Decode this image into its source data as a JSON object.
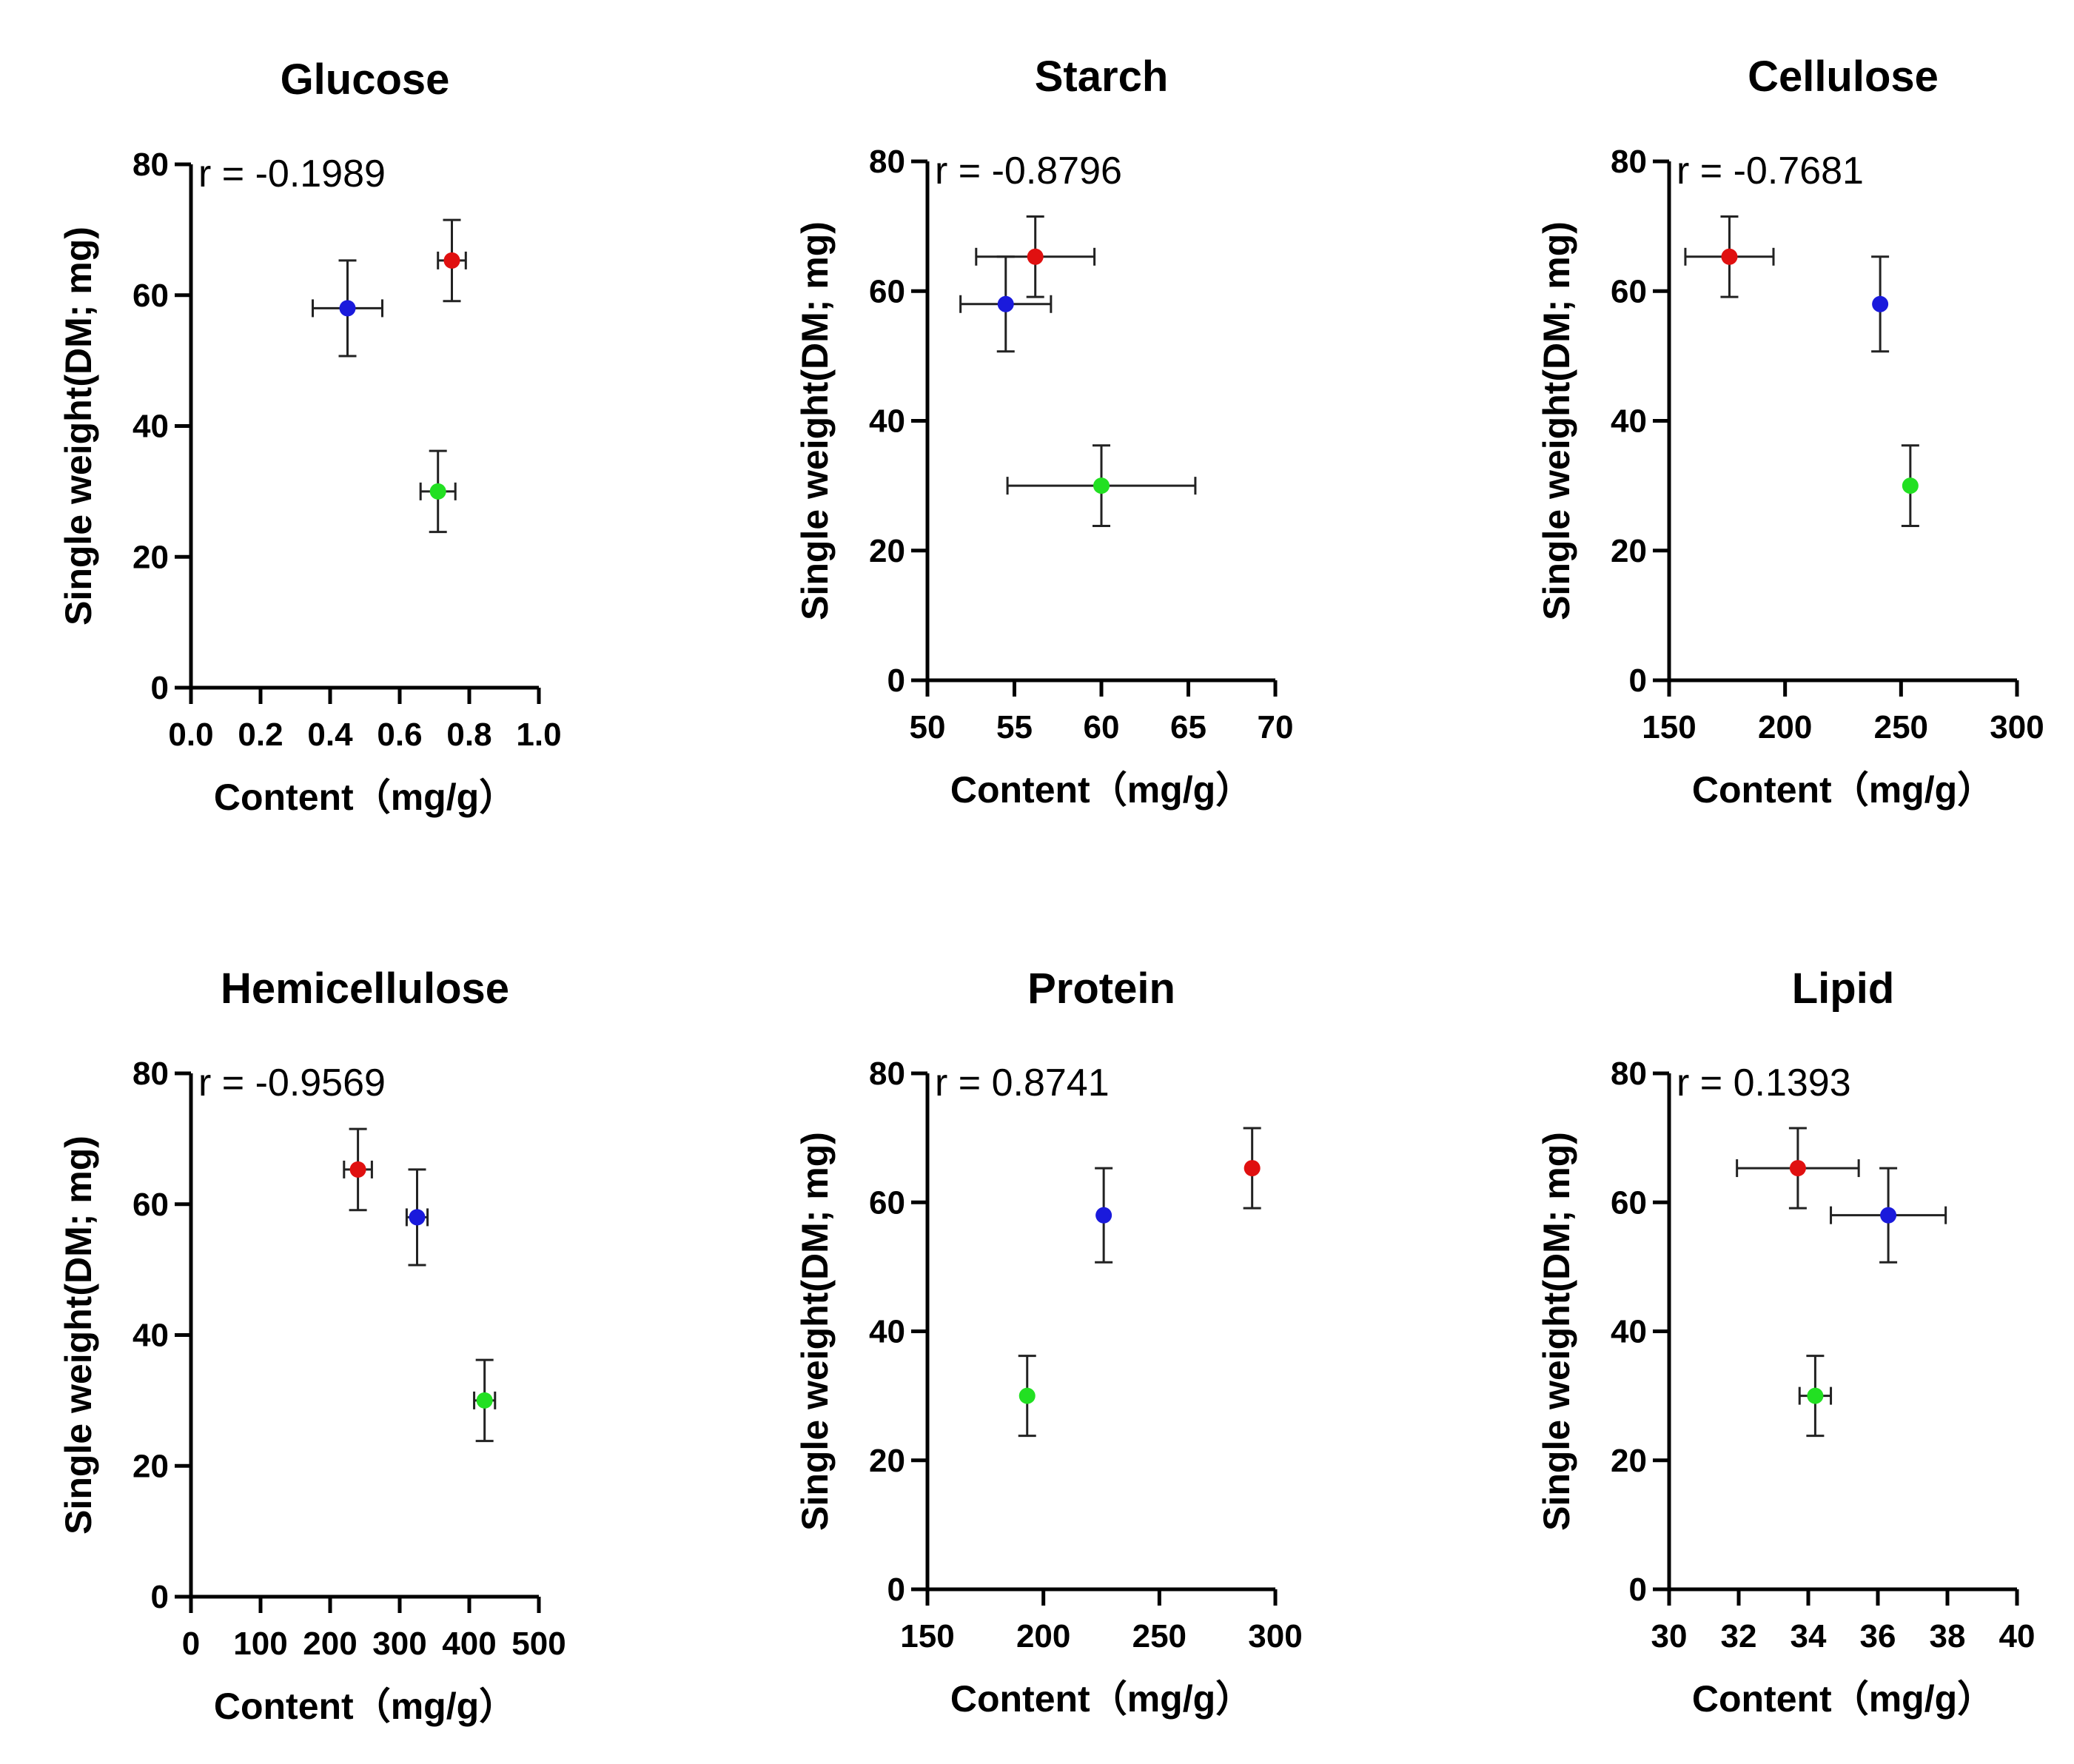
{
  "chart_data": [
    {
      "type": "scatter",
      "title": "Glucose",
      "xlabel": "Content（mg/g）",
      "ylabel": "Single weight(DM; mg)",
      "annotation": "r = -0.1989",
      "xlim": [
        0,
        1.0
      ],
      "ylim": [
        0,
        80
      ],
      "xticks": [
        "0.0",
        "0.2",
        "0.4",
        "0.6",
        "0.8",
        "1.0"
      ],
      "yticks": [
        "0",
        "20",
        "40",
        "60",
        "80"
      ],
      "points": [
        {
          "color": "#1a1adc",
          "x": 0.45,
          "y": 58.0,
          "xerr": 0.1,
          "yerr": 7.3
        },
        {
          "color": "#e01010",
          "x": 0.75,
          "y": 65.3,
          "xerr": 0.04,
          "yerr": 6.2
        },
        {
          "color": "#22e022",
          "x": 0.71,
          "y": 30.0,
          "xerr": 0.05,
          "yerr": 6.2
        }
      ]
    },
    {
      "type": "scatter",
      "title": "Starch",
      "xlabel": "Content（mg/g）",
      "ylabel": "Single weight(DM; mg)",
      "annotation": "r = -0.8796",
      "xlim": [
        50,
        70
      ],
      "ylim": [
        0,
        80
      ],
      "xticks": [
        "50",
        "55",
        "60",
        "65",
        "70"
      ],
      "yticks": [
        "0",
        "20",
        "40",
        "60",
        "80"
      ],
      "points": [
        {
          "color": "#1a1adc",
          "x": 54.5,
          "y": 58.0,
          "xerr": 2.6,
          "yerr": 7.3
        },
        {
          "color": "#e01010",
          "x": 56.2,
          "y": 65.3,
          "xerr": 3.4,
          "yerr": 6.2
        },
        {
          "color": "#22e022",
          "x": 60.0,
          "y": 30.0,
          "xerr": 5.4,
          "yerr": 6.2
        }
      ]
    },
    {
      "type": "scatter",
      "title": "Cellulose",
      "xlabel": "Content（mg/g）",
      "ylabel": "Single weight(DM; mg)",
      "annotation": "r = -0.7681",
      "xlim": [
        150,
        300
      ],
      "ylim": [
        0,
        80
      ],
      "xticks": [
        "150",
        "200",
        "250",
        "300"
      ],
      "yticks": [
        "0",
        "20",
        "40",
        "60",
        "80"
      ],
      "points": [
        {
          "color": "#1a1adc",
          "x": 241,
          "y": 58.0,
          "xerr": 0,
          "yerr": 7.3
        },
        {
          "color": "#e01010",
          "x": 176,
          "y": 65.3,
          "xerr": 19,
          "yerr": 6.2
        },
        {
          "color": "#22e022",
          "x": 254,
          "y": 30.0,
          "xerr": 0,
          "yerr": 6.2
        }
      ]
    },
    {
      "type": "scatter",
      "title": "Hemicellulose",
      "xlabel": "Content（mg/g）",
      "ylabel": "Single weight(DM; mg)",
      "annotation": "r = -0.9569",
      "xlim": [
        0,
        500
      ],
      "ylim": [
        0,
        80
      ],
      "xticks": [
        "0",
        "100",
        "200",
        "300",
        "400",
        "500"
      ],
      "yticks": [
        "0",
        "20",
        "40",
        "60",
        "80"
      ],
      "points": [
        {
          "color": "#1a1adc",
          "x": 325,
          "y": 58.0,
          "xerr": 15,
          "yerr": 7.3
        },
        {
          "color": "#e01010",
          "x": 240,
          "y": 65.3,
          "xerr": 20,
          "yerr": 6.2
        },
        {
          "color": "#22e022",
          "x": 422,
          "y": 30.0,
          "xerr": 15,
          "yerr": 6.2
        }
      ]
    },
    {
      "type": "scatter",
      "title": "Protein",
      "xlabel": "Content（mg/g）",
      "ylabel": "Single weight(DM; mg)",
      "annotation": "r = 0.8741",
      "xlim": [
        150,
        300
      ],
      "ylim": [
        0,
        80
      ],
      "xticks": [
        "150",
        "200",
        "250",
        "300"
      ],
      "yticks": [
        "0",
        "20",
        "40",
        "60",
        "80"
      ],
      "points": [
        {
          "color": "#1a1adc",
          "x": 226,
          "y": 58.0,
          "xerr": 0,
          "yerr": 7.3
        },
        {
          "color": "#e01010",
          "x": 290,
          "y": 65.3,
          "xerr": 0,
          "yerr": 6.2
        },
        {
          "color": "#22e022",
          "x": 193,
          "y": 30.0,
          "xerr": 0,
          "yerr": 6.2
        }
      ]
    },
    {
      "type": "scatter",
      "title": "Lipid",
      "xlabel": "Content（mg/g）",
      "ylabel": "Single weight(DM; mg)",
      "annotation": "r = 0.1393",
      "xlim": [
        30,
        40
      ],
      "ylim": [
        0,
        80
      ],
      "xticks": [
        "30",
        "32",
        "34",
        "36",
        "38",
        "40"
      ],
      "yticks": [
        "0",
        "20",
        "40",
        "60",
        "80"
      ],
      "points": [
        {
          "color": "#1a1adc",
          "x": 36.3,
          "y": 58.0,
          "xerr": 1.65,
          "yerr": 7.3
        },
        {
          "color": "#e01010",
          "x": 33.7,
          "y": 65.3,
          "xerr": 1.75,
          "yerr": 6.2
        },
        {
          "color": "#22e022",
          "x": 34.2,
          "y": 30.0,
          "xerr": 0.45,
          "yerr": 6.2
        }
      ]
    }
  ]
}
